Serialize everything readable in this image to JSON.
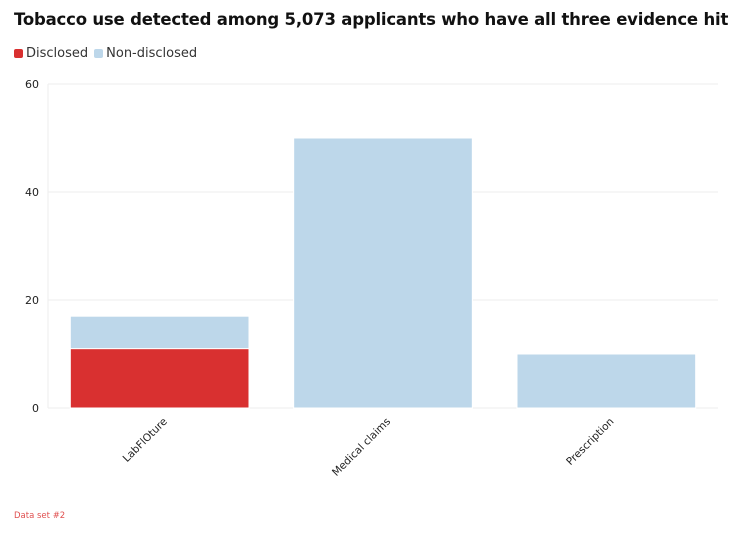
{
  "chart_data": {
    "type": "bar",
    "stacked": true,
    "title": "Tobacco use detected among 5,073 applicants who have all three evidence hit",
    "categories": [
      "LabFlOture",
      "Medical claims",
      "Prescription"
    ],
    "series": [
      {
        "name": "Disclosed",
        "color": "#d93030",
        "values": [
          11,
          0,
          0
        ]
      },
      {
        "name": "Non-disclosed",
        "color": "#bdd7ea",
        "values": [
          6,
          50,
          10
        ]
      }
    ],
    "ylim": [
      0,
      60
    ],
    "yticks": [
      0,
      20,
      40,
      60
    ],
    "grid": true,
    "legend_position": "top-left",
    "footnote": "Data set #2"
  }
}
